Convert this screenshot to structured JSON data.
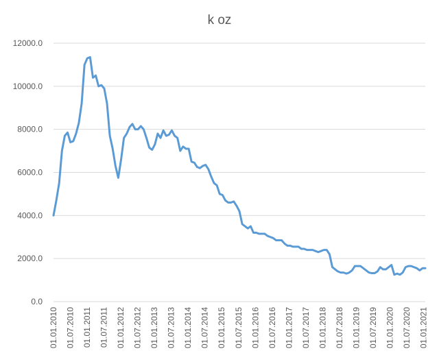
{
  "chart_data": {
    "type": "line",
    "title": "k oz",
    "xlabel": "",
    "ylabel": "",
    "ylim": [
      0,
      12000
    ],
    "yticks": [
      "0.0",
      "2000.0",
      "4000.0",
      "6000.0",
      "8000.0",
      "10000.0",
      "12000.0"
    ],
    "xticks": [
      "01.01.2010",
      "01.07.2010",
      "01.01.2011",
      "01.07.2011",
      "01.01.2012",
      "01.07.2012",
      "01.01.2013",
      "01.07.2013",
      "01.01.2014",
      "01.07.2014",
      "01.01.2015",
      "01.07.2015",
      "01.01.2016",
      "01.07.2016",
      "01.01.2017",
      "01.07.2017",
      "01.01.2018",
      "01.07.2018",
      "01.01.2019",
      "01.07.2019",
      "01.01.2020",
      "01.07.2020",
      "01.01.2021"
    ],
    "grid": true,
    "legend": "none",
    "color": "#5b9bd5",
    "series": [
      {
        "values": [
          4000,
          4700,
          5500,
          7000,
          7700,
          7850,
          7400,
          7450,
          7800,
          8300,
          9200,
          11000,
          11300,
          11350,
          10400,
          10500,
          10000,
          10050,
          9900,
          9200,
          7700,
          7100,
          6300,
          5750,
          6600,
          7600,
          7800,
          8100,
          8250,
          8000,
          8000,
          8150,
          8000,
          7600,
          7150,
          7050,
          7300,
          7800,
          7600,
          7950,
          7700,
          7750,
          7950,
          7700,
          7600,
          7000,
          7200,
          7100,
          7100,
          6500,
          6450,
          6250,
          6200,
          6300,
          6350,
          6150,
          5800,
          5500,
          5400,
          5000,
          4950,
          4700,
          4600,
          4600,
          4650,
          4450,
          4200,
          3600,
          3500,
          3400,
          3500,
          3200,
          3200,
          3150,
          3150,
          3150,
          3050,
          3000,
          2950,
          2850,
          2850,
          2850,
          2700,
          2600,
          2600,
          2550,
          2550,
          2550,
          2450,
          2450,
          2400,
          2400,
          2400,
          2350,
          2300,
          2350,
          2400,
          2400,
          2200,
          1600,
          1500,
          1400,
          1350,
          1350,
          1300,
          1350,
          1450,
          1650,
          1650,
          1650,
          1550,
          1450,
          1350,
          1320,
          1320,
          1400,
          1600,
          1500,
          1500,
          1600,
          1700,
          1250,
          1300,
          1250,
          1350,
          1600,
          1650,
          1650,
          1600,
          1550,
          1450,
          1550,
          1550
        ]
      }
    ]
  }
}
